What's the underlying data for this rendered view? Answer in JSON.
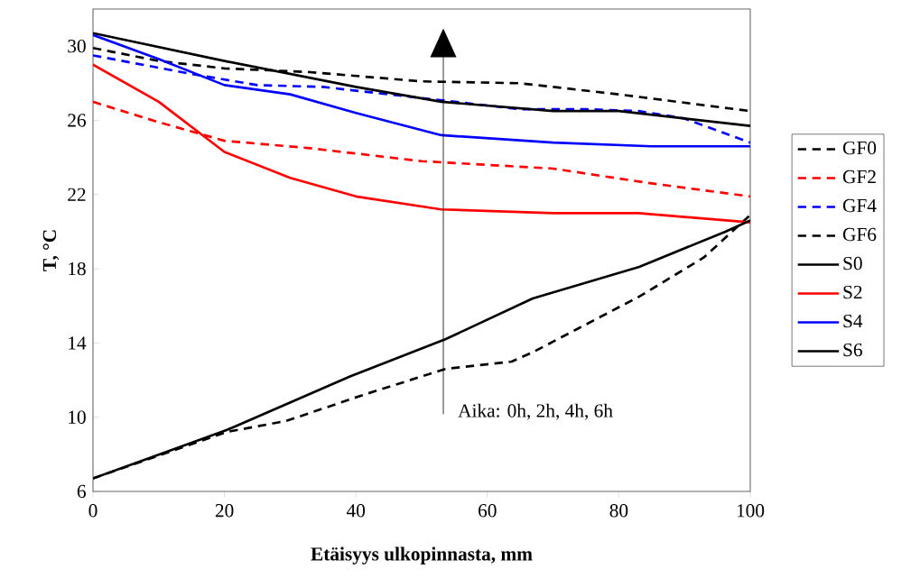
{
  "chart_data": {
    "type": "line",
    "xlabel": "Etäisyys ulkopinnasta, mm",
    "ylabel": "T, °C",
    "xlim": [
      0,
      100
    ],
    "xticks": [
      0,
      20,
      40,
      60,
      80,
      100
    ],
    "ylim": [
      6,
      32
    ],
    "yticks": [
      6,
      10,
      14,
      18,
      22,
      26,
      30
    ],
    "grid": false,
    "legend": "right",
    "marker": "none",
    "annotations": [
      "Aika: 0h, 2h, 4h, 6h"
    ],
    "series": [
      {
        "name": "GF0",
        "color": "#000000",
        "line_style": "dashed",
        "x": [
          0,
          10,
          20,
          33,
          50,
          65,
          80,
          100
        ],
        "values": [
          29.9,
          29.2,
          28.8,
          28.6,
          28.1,
          28.0,
          27.4,
          26.5
        ]
      },
      {
        "name": "GF2",
        "color": "#ff0000",
        "line_style": "dashed",
        "x": [
          0,
          10,
          20,
          33,
          50,
          70,
          85,
          100
        ],
        "values": [
          27.0,
          25.9,
          24.9,
          24.5,
          23.8,
          23.4,
          22.6,
          21.9
        ]
      },
      {
        "name": "GF4",
        "color": "#0000ff",
        "line_style": "dashed",
        "x": [
          0,
          15,
          25,
          35,
          50,
          65,
          75,
          83,
          90,
          100
        ],
        "values": [
          29.5,
          28.5,
          27.9,
          27.8,
          27.2,
          26.6,
          26.6,
          26.5,
          26.1,
          24.8
        ]
      },
      {
        "name": "GF6",
        "color": "#000000",
        "line_style": "dashed",
        "x": [
          0,
          20.3,
          29.4,
          41.1,
          53.6,
          63.7,
          66.9,
          83.1,
          92.9,
          100
        ],
        "values": [
          6.7,
          9.2,
          9.8,
          11.2,
          12.6,
          13.0,
          13.5,
          16.5,
          18.6,
          20.9
        ]
      },
      {
        "name": "S0",
        "color": "#000000",
        "line_style": "solid",
        "x": [
          0,
          20,
          40,
          53,
          70,
          80,
          90,
          100
        ],
        "values": [
          30.7,
          29.2,
          27.8,
          27.0,
          26.5,
          26.5,
          26.1,
          25.7
        ]
      },
      {
        "name": "S2",
        "color": "#ff0000",
        "line_style": "solid",
        "x": [
          0,
          10,
          20,
          30,
          40,
          53,
          70,
          83,
          100
        ],
        "values": [
          29.0,
          27.0,
          24.3,
          22.9,
          21.9,
          21.2,
          21.0,
          21.0,
          20.5
        ]
      },
      {
        "name": "S4",
        "color": "#0000ff",
        "line_style": "solid",
        "x": [
          0,
          10,
          20,
          30,
          40,
          53,
          70,
          85,
          100
        ],
        "values": [
          30.6,
          29.3,
          27.9,
          27.4,
          26.4,
          25.2,
          24.8,
          24.6,
          24.6
        ]
      },
      {
        "name": "S6",
        "color": "#000000",
        "line_style": "solid",
        "x": [
          0,
          20.3,
          39.1,
          53.6,
          66.9,
          83.1,
          96.2,
          100
        ],
        "values": [
          6.7,
          9.3,
          12.2,
          14.2,
          16.4,
          18.1,
          20.0,
          20.6
        ]
      }
    ]
  }
}
